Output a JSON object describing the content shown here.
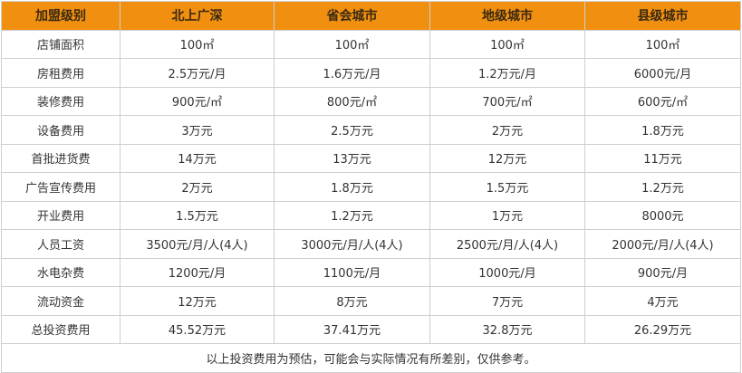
{
  "header": [
    "加盟级别",
    "北上广深",
    "省会城市",
    "地级城市",
    "县级城市"
  ],
  "colors": {
    "header_bg": "#f08f10",
    "border": "#cfcfcf"
  },
  "rows": [
    [
      "店铺面积",
      "100㎡",
      "100㎡",
      "100㎡",
      "100㎡"
    ],
    [
      "房租费用",
      "2.5万元/月",
      "1.6万元/月",
      "1.2万元/月",
      "6000元/月"
    ],
    [
      "装修费用",
      "900元/㎡",
      "800元/㎡",
      "700元/㎡",
      "600元/㎡"
    ],
    [
      "设备费用",
      "3万元",
      "2.5万元",
      "2万元",
      "1.8万元"
    ],
    [
      "首批进货费",
      "14万元",
      "13万元",
      "12万元",
      "11万元"
    ],
    [
      "广告宣传费用",
      "2万元",
      "1.8万元",
      "1.5万元",
      "1.2万元"
    ],
    [
      "开业费用",
      "1.5万元",
      "1.2万元",
      "1万元",
      "8000元"
    ],
    [
      "人员工资",
      "3500元/月/人(4人)",
      "3000元/月/人(4人)",
      "2500元/月/人(4人)",
      "2000元/月/人(4人)"
    ],
    [
      "水电杂费",
      "1200元/月",
      "1100元/月",
      "1000元/月",
      "900元/月"
    ],
    [
      "流动资金",
      "12万元",
      "8万元",
      "7万元",
      "4万元"
    ],
    [
      "总投资费用",
      "45.52万元",
      "37.41万元",
      "32.8万元",
      "26.29万元"
    ]
  ],
  "note": "以上投资费用为预估，可能会与实际情况有所差别，仅供参考。"
}
